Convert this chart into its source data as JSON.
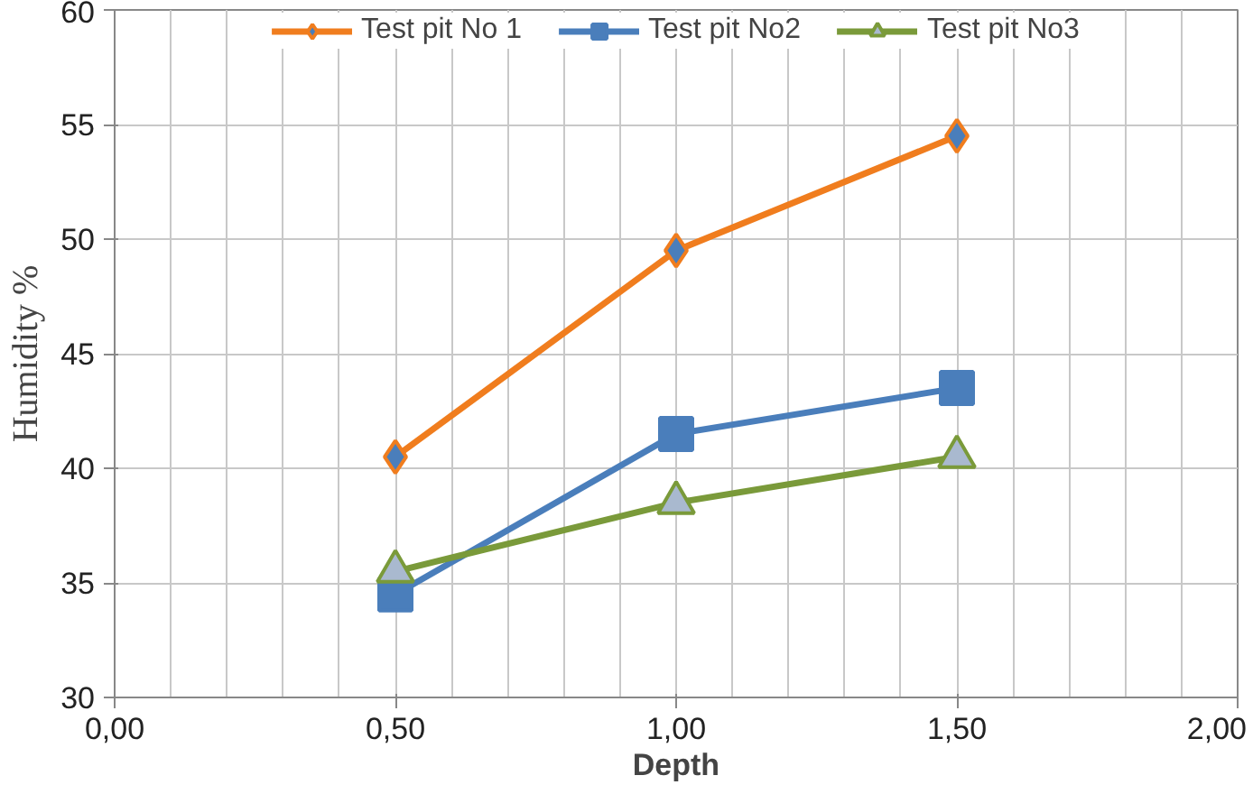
{
  "chart_data": {
    "type": "line",
    "xlabel": "Depth",
    "ylabel": "Humidity %",
    "x": [
      0.5,
      1.0,
      1.5
    ],
    "series": [
      {
        "name": "Test pit No 1",
        "color": "#f07d1e",
        "values": [
          40.5,
          49.5,
          54.5
        ],
        "marker": "diamond"
      },
      {
        "name": "Test pit No2",
        "color": "#4a7ebb",
        "values": [
          34.5,
          41.5,
          43.5
        ],
        "marker": "square"
      },
      {
        "name": "Test pit No3",
        "color": "#7a9a3a",
        "values": [
          35.5,
          38.5,
          40.5
        ],
        "marker": "triangle"
      }
    ],
    "xlim": [
      0,
      2
    ],
    "xticks": [
      {
        "value": 0,
        "label": "0,00"
      },
      {
        "value": 0.5,
        "label": "0,50"
      },
      {
        "value": 1,
        "label": "1,00"
      },
      {
        "value": 1.5,
        "label": "1,50"
      },
      {
        "value": 2,
        "label": "2,00"
      }
    ],
    "ylim": [
      30,
      60
    ],
    "yticks": [
      30,
      35,
      40,
      45,
      50,
      55,
      60
    ],
    "grid": true,
    "legend": "top",
    "line_style": "solid"
  }
}
